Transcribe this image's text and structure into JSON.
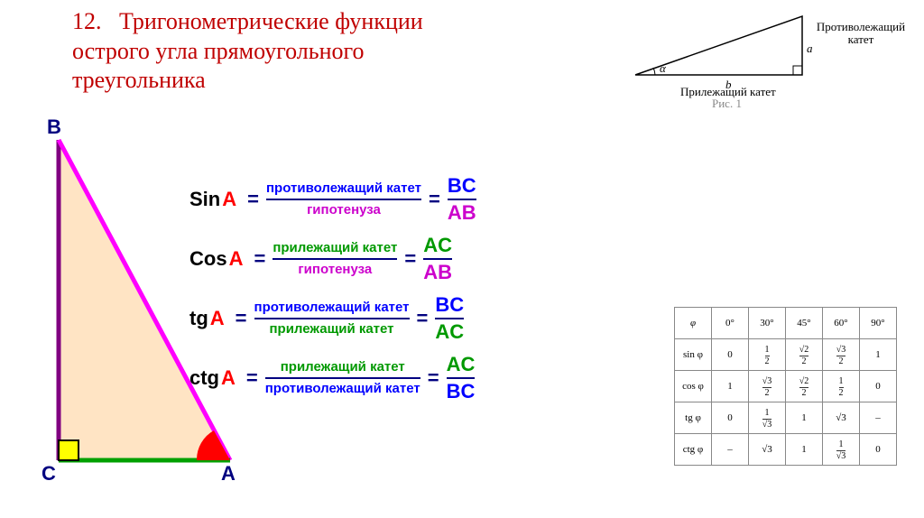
{
  "title": {
    "prefix": "12.",
    "line1": "Тригонометрические функции",
    "line2": "острого угла прямоугольного",
    "line3": "треугольника",
    "color": "#c00000",
    "fontsize": 26
  },
  "top_diagram": {
    "label_opposite": "Противолежащий\nкатет",
    "label_adjacent": "Прилежащий катет",
    "label_fig": "Рис. 1",
    "side_a": "a",
    "side_b": "b",
    "angle": "α",
    "stroke": "#000000"
  },
  "triangle": {
    "vertices": {
      "A": "A",
      "B": "B",
      "C": "C"
    },
    "fill": "#ffe4c4",
    "side_BC": {
      "color": "#800080",
      "width": 4
    },
    "side_AB": {
      "color": "#ff00ff",
      "width": 4
    },
    "side_CA": {
      "color": "#00a000",
      "width": 4
    },
    "right_angle_marker": {
      "fill": "#ffff00",
      "stroke": "#000000"
    },
    "angle_arc": {
      "fill": "#ff0000"
    }
  },
  "formulas": [
    {
      "fn": "Sin",
      "num_word": "противолежащий катет",
      "num_class": "c-opp",
      "den_word": "гипотенуза",
      "den_class": "c-hyp",
      "ratio_num": "BC",
      "ratio_num_class": "c-opp",
      "ratio_den": "AB",
      "ratio_den_class": "c-hyp"
    },
    {
      "fn": "Cos",
      "num_word": "прилежащий катет",
      "num_class": "c-adj",
      "den_word": "гипотенуза",
      "den_class": "c-hyp",
      "ratio_num": "AC",
      "ratio_num_class": "c-adj",
      "ratio_den": "AB",
      "ratio_den_class": "c-hyp"
    },
    {
      "fn": "tg",
      "num_word": "противолежащий катет",
      "num_class": "c-opp",
      "den_word": "прилежащий катет",
      "den_class": "c-adj",
      "ratio_num": "BC",
      "ratio_num_class": "c-opp",
      "ratio_den": "AC",
      "ratio_den_class": "c-adj"
    },
    {
      "fn": "ctg",
      "num_word": "прилежащий катет",
      "num_class": "c-adj",
      "den_word": "противолежащий катет",
      "den_class": "c-opp",
      "ratio_num": "AC",
      "ratio_num_class": "c-adj",
      "ratio_den": "BC",
      "ratio_den_class": "c-opp"
    }
  ],
  "formula_angle": "A",
  "formula_eq": "=",
  "colors": {
    "opp": "#0000ff",
    "hyp": "#cc00cc",
    "adj": "#009900",
    "angle": "#ff0000",
    "eq": "#000080",
    "fn": "#000000"
  },
  "values_table": {
    "header_sym": "φ",
    "angles": [
      "0°",
      "30°",
      "45°",
      "60°",
      "90°"
    ],
    "rows": [
      {
        "label": "sin φ",
        "cells": [
          "0",
          {
            "frac": [
              "1",
              "2"
            ]
          },
          {
            "frac": [
              "√2",
              "2"
            ]
          },
          {
            "frac": [
              "√3",
              "2"
            ]
          },
          "1"
        ]
      },
      {
        "label": "cos φ",
        "cells": [
          "1",
          {
            "frac": [
              "√3",
              "2"
            ]
          },
          {
            "frac": [
              "√2",
              "2"
            ]
          },
          {
            "frac": [
              "1",
              "2"
            ]
          },
          "0"
        ]
      },
      {
        "label": "tg φ",
        "cells": [
          "0",
          {
            "frac": [
              "1",
              "√3"
            ]
          },
          "1",
          "√3",
          "–"
        ]
      },
      {
        "label": "ctg φ",
        "cells": [
          "–",
          "√3",
          "1",
          {
            "frac": [
              "1",
              "√3"
            ]
          },
          "0"
        ]
      }
    ],
    "border_color": "#888888"
  }
}
